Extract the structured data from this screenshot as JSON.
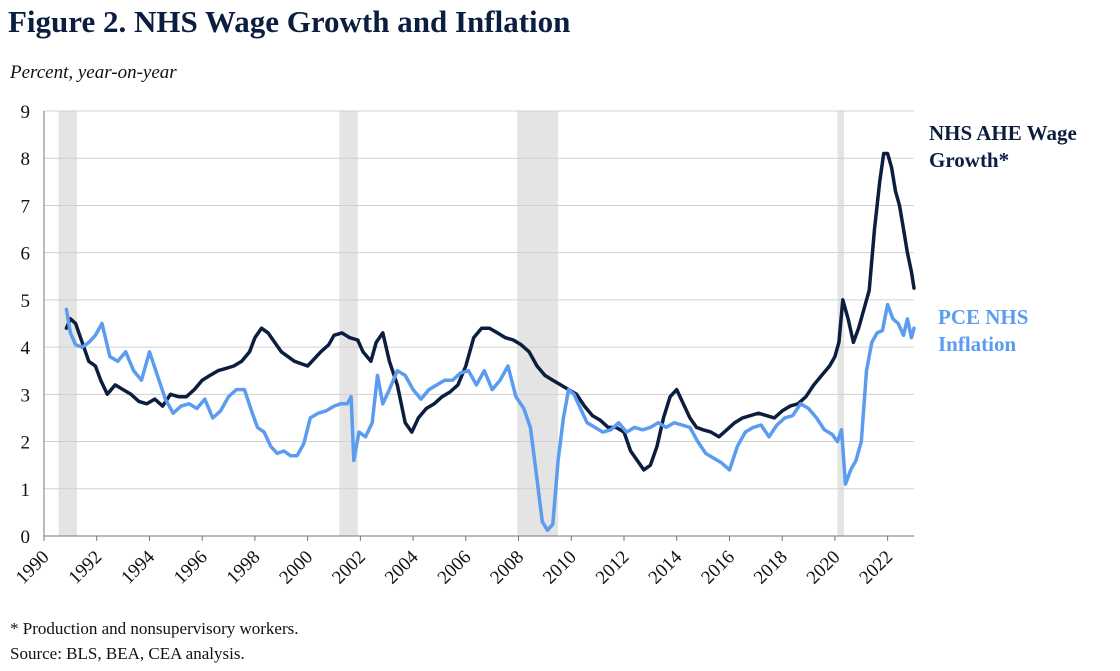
{
  "chart_data": {
    "type": "line",
    "title": "Figure 2. NHS Wage Growth and Inflation",
    "subtitle": "Percent, year-on-year",
    "ylim": [
      0,
      9
    ],
    "y_ticks": [
      "0",
      "1",
      "2",
      "3",
      "4",
      "5",
      "6",
      "7",
      "8",
      "9"
    ],
    "xlim": [
      1990,
      2023
    ],
    "x_ticks": [
      "1990",
      "1992",
      "1994",
      "1996",
      "1998",
      "2000",
      "2002",
      "2004",
      "2006",
      "2008",
      "2010",
      "2012",
      "2014",
      "2016",
      "2018",
      "2020",
      "2022"
    ],
    "grid": "horizontal",
    "recessions": [
      [
        1990.55,
        1991.25
      ],
      [
        2001.2,
        2001.9
      ],
      [
        2007.95,
        2009.5
      ],
      [
        2020.1,
        2020.35
      ]
    ],
    "series": [
      {
        "name": "NHS AHE Wage Growth*",
        "color": "#0b1e3f",
        "x": [
          1990.85,
          1991.0,
          1991.2,
          1991.45,
          1991.7,
          1991.95,
          1992.15,
          1992.4,
          1992.7,
          1993.0,
          1993.3,
          1993.6,
          1993.9,
          1994.2,
          1994.5,
          1994.8,
          1995.1,
          1995.4,
          1995.7,
          1996.0,
          1996.3,
          1996.6,
          1996.9,
          1997.2,
          1997.5,
          1997.8,
          1998.0,
          1998.25,
          1998.5,
          1998.75,
          1999.0,
          1999.25,
          1999.5,
          1999.75,
          2000.0,
          2000.25,
          2000.5,
          2000.8,
          2001.0,
          2001.3,
          2001.6,
          2001.9,
          2002.1,
          2002.4,
          2002.6,
          2002.85,
          2003.1,
          2003.4,
          2003.7,
          2003.95,
          2004.2,
          2004.5,
          2004.8,
          2005.1,
          2005.4,
          2005.7,
          2006.0,
          2006.3,
          2006.6,
          2006.9,
          2007.2,
          2007.5,
          2007.8,
          2008.1,
          2008.4,
          2008.7,
          2009.0,
          2009.3,
          2009.6,
          2009.9,
          2010.2,
          2010.5,
          2010.8,
          2011.1,
          2011.4,
          2011.7,
          2012.0,
          2012.25,
          2012.5,
          2012.75,
          2013.0,
          2013.25,
          2013.5,
          2013.75,
          2014.0,
          2014.25,
          2014.5,
          2014.75,
          2015.0,
          2015.3,
          2015.6,
          2015.9,
          2016.2,
          2016.5,
          2016.8,
          2017.1,
          2017.4,
          2017.7,
          2018.0,
          2018.3,
          2018.6,
          2018.9,
          2019.2,
          2019.5,
          2019.8,
          2020.0,
          2020.15,
          2020.3,
          2020.5,
          2020.7,
          2020.9,
          2021.1,
          2021.3,
          2021.5,
          2021.7,
          2021.85,
          2022.0,
          2022.15,
          2022.3,
          2022.45,
          2022.6,
          2022.75,
          2022.9,
          2023.0
        ],
        "values": [
          4.4,
          4.6,
          4.5,
          4.1,
          3.7,
          3.6,
          3.3,
          3.0,
          3.2,
          3.1,
          3.0,
          2.85,
          2.8,
          2.9,
          2.75,
          3.0,
          2.95,
          2.95,
          3.1,
          3.3,
          3.4,
          3.5,
          3.55,
          3.6,
          3.7,
          3.9,
          4.2,
          4.4,
          4.3,
          4.1,
          3.9,
          3.8,
          3.7,
          3.65,
          3.6,
          3.75,
          3.9,
          4.05,
          4.25,
          4.3,
          4.2,
          4.15,
          3.9,
          3.7,
          4.1,
          4.3,
          3.7,
          3.2,
          2.4,
          2.2,
          2.5,
          2.7,
          2.8,
          2.95,
          3.05,
          3.2,
          3.6,
          4.2,
          4.4,
          4.4,
          4.3,
          4.2,
          4.15,
          4.05,
          3.9,
          3.6,
          3.4,
          3.3,
          3.2,
          3.1,
          3.0,
          2.75,
          2.55,
          2.45,
          2.3,
          2.3,
          2.2,
          1.8,
          1.6,
          1.4,
          1.5,
          1.9,
          2.5,
          2.95,
          3.1,
          2.8,
          2.5,
          2.3,
          2.25,
          2.2,
          2.1,
          2.25,
          2.4,
          2.5,
          2.55,
          2.6,
          2.55,
          2.5,
          2.65,
          2.75,
          2.8,
          2.95,
          3.2,
          3.4,
          3.6,
          3.8,
          4.1,
          5.0,
          4.6,
          4.1,
          4.4,
          4.8,
          5.2,
          6.5,
          7.5,
          8.1,
          8.1,
          7.8,
          7.3,
          7.0,
          6.5,
          6.0,
          5.6,
          5.25
        ]
      },
      {
        "name": "PCE NHS Inflation",
        "color": "#5b9cf0",
        "x": [
          1990.85,
          1991.0,
          1991.2,
          1991.45,
          1991.7,
          1991.95,
          1992.2,
          1992.5,
          1992.8,
          1993.1,
          1993.4,
          1993.7,
          1994.0,
          1994.3,
          1994.6,
          1994.9,
          1995.2,
          1995.5,
          1995.8,
          1996.1,
          1996.4,
          1996.7,
          1997.0,
          1997.3,
          1997.6,
          1997.9,
          1998.1,
          1998.35,
          1998.6,
          1998.85,
          1999.1,
          1999.35,
          1999.6,
          1999.85,
          2000.1,
          2000.4,
          2000.7,
          2001.0,
          2001.25,
          2001.5,
          2001.65,
          2001.75,
          2001.95,
          2002.2,
          2002.45,
          2002.65,
          2002.85,
          2003.1,
          2003.4,
          2003.7,
          2004.0,
          2004.3,
          2004.6,
          2004.9,
          2005.2,
          2005.5,
          2005.8,
          2006.1,
          2006.4,
          2006.7,
          2007.0,
          2007.3,
          2007.6,
          2007.9,
          2008.2,
          2008.45,
          2008.7,
          2008.9,
          2009.1,
          2009.3,
          2009.5,
          2009.7,
          2009.9,
          2010.1,
          2010.35,
          2010.6,
          2010.9,
          2011.2,
          2011.5,
          2011.8,
          2012.1,
          2012.4,
          2012.7,
          2013.0,
          2013.3,
          2013.6,
          2013.9,
          2014.2,
          2014.5,
          2014.8,
          2015.1,
          2015.4,
          2015.7,
          2016.0,
          2016.3,
          2016.6,
          2016.9,
          2017.2,
          2017.5,
          2017.8,
          2018.1,
          2018.4,
          2018.7,
          2019.0,
          2019.3,
          2019.6,
          2019.9,
          2020.1,
          2020.25,
          2020.4,
          2020.6,
          2020.8,
          2021.0,
          2021.2,
          2021.4,
          2021.6,
          2021.8,
          2022.0,
          2022.2,
          2022.4,
          2022.6,
          2022.75,
          2022.9,
          2023.0
        ],
        "values": [
          4.8,
          4.3,
          4.05,
          4.0,
          4.1,
          4.25,
          4.5,
          3.8,
          3.7,
          3.9,
          3.5,
          3.3,
          3.9,
          3.4,
          2.9,
          2.6,
          2.75,
          2.8,
          2.7,
          2.9,
          2.5,
          2.65,
          2.95,
          3.1,
          3.1,
          2.6,
          2.3,
          2.2,
          1.9,
          1.75,
          1.8,
          1.7,
          1.7,
          1.95,
          2.5,
          2.6,
          2.65,
          2.75,
          2.8,
          2.8,
          2.95,
          1.6,
          2.2,
          2.1,
          2.4,
          3.4,
          2.8,
          3.1,
          3.5,
          3.4,
          3.1,
          2.9,
          3.1,
          3.2,
          3.3,
          3.3,
          3.45,
          3.5,
          3.2,
          3.5,
          3.1,
          3.3,
          3.6,
          2.95,
          2.7,
          2.3,
          1.2,
          0.3,
          0.12,
          0.25,
          1.6,
          2.5,
          3.1,
          3.0,
          2.7,
          2.4,
          2.3,
          2.2,
          2.25,
          2.4,
          2.2,
          2.3,
          2.25,
          2.3,
          2.4,
          2.3,
          2.4,
          2.35,
          2.3,
          2.0,
          1.75,
          1.65,
          1.55,
          1.4,
          1.9,
          2.2,
          2.3,
          2.35,
          2.1,
          2.35,
          2.5,
          2.55,
          2.8,
          2.7,
          2.5,
          2.25,
          2.15,
          2.0,
          2.25,
          1.1,
          1.4,
          1.6,
          2.0,
          3.5,
          4.1,
          4.3,
          4.35,
          4.9,
          4.6,
          4.5,
          4.25,
          4.6,
          4.2,
          4.4
        ]
      }
    ],
    "labels": {
      "wage": [
        "NHS AHE Wage",
        "Growth*"
      ],
      "pce": [
        "PCE NHS",
        "Inflation"
      ]
    }
  },
  "footnotes": {
    "note": "* Production and nonsupervisory workers.",
    "source": "Source: BLS, BEA, CEA analysis."
  }
}
